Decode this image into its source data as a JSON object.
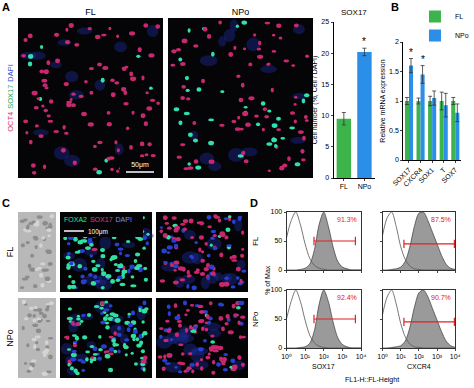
{
  "panel_labels": [
    "A",
    "B",
    "C",
    "D"
  ],
  "panel_a_images": {
    "columns": [
      "FL",
      "NPo"
    ],
    "stain": [
      {
        "text": "OCT4",
        "color": "#e0306a"
      },
      {
        "text": "SOX17",
        "color": "#10a868"
      },
      {
        "text": "DAPI",
        "color": "#2f4fe0"
      }
    ],
    "scale_bar": "50μm"
  },
  "panel_c_images": {
    "rows": [
      "FL",
      "NPo"
    ],
    "stain": [
      {
        "text": "FOXA2",
        "color": "#30e090"
      },
      {
        "text": "SOX17",
        "color": "#ff3070"
      },
      {
        "text": "DAPI",
        "color": "#7090ff"
      }
    ],
    "scale_bar": "100μm"
  },
  "panel_d": {
    "rows": [
      "FL",
      "NPo"
    ],
    "ylabel": "% of Max",
    "xlabel": "FL1-H::FL-Height"
  },
  "chart_data": [
    {
      "type": "bar",
      "title": "SOX17",
      "ylabel": "Cell number (%, Cell / DAPI)",
      "categories": [
        "FL",
        "NPo"
      ],
      "values": [
        9.5,
        20.2
      ],
      "errors": [
        1.0,
        0.6
      ],
      "colors": [
        "#3cb44b",
        "#2b8fe8"
      ],
      "ylim": [
        0,
        25
      ],
      "yticks": [
        0,
        5,
        10,
        15,
        20,
        25
      ],
      "annotations": [
        {
          "category": "NPo",
          "text": "*"
        }
      ]
    },
    {
      "type": "bar",
      "ylabel": "Relative mRNA expression",
      "categories": [
        "SOX17",
        "CXCR4",
        "SOX1",
        "T",
        "SOX7"
      ],
      "series": [
        {
          "name": "FL",
          "color": "#3cb44b",
          "values": [
            1,
            1,
            1,
            1,
            1
          ],
          "errors": [
            0.06,
            0.05,
            0.08,
            0.15,
            0.06
          ]
        },
        {
          "name": "NPo",
          "color": "#2b8fe8",
          "values": [
            1.6,
            1.45,
            1.05,
            0.93,
            0.8
          ],
          "errors": [
            0.12,
            0.15,
            0.12,
            0.2,
            0.15
          ]
        }
      ],
      "ylim": [
        0,
        2
      ],
      "yticks": [
        0,
        0.5,
        1,
        1.5,
        2
      ],
      "legend": "top",
      "annotations": [
        {
          "category": "SOX17",
          "series": "NPo",
          "text": "*"
        },
        {
          "category": "CXCR4",
          "series": "NPo",
          "text": "*"
        }
      ]
    },
    {
      "type": "line",
      "x": [
        1,
        1.78,
        3.16,
        5.62,
        10,
        17.8,
        31.6,
        56.2,
        100,
        178,
        316,
        562,
        1000,
        1778,
        3162,
        5623,
        10000
      ],
      "series": [
        {
          "type": "area",
          "color": "#9a9a9a",
          "values": [
            0,
            0,
            0,
            1,
            3,
            10,
            35,
            78,
            100,
            75,
            40,
            15,
            5,
            2,
            0,
            0,
            0
          ]
        },
        {
          "type": "line",
          "color": "#555555",
          "values": [
            55,
            85,
            100,
            78,
            45,
            20,
            8,
            3,
            1,
            0,
            0,
            0,
            0,
            0,
            0,
            0,
            0
          ]
        }
      ],
      "xlim": [
        1,
        10000
      ],
      "xticks": [
        {
          "value": 1,
          "label": "10⁰"
        },
        {
          "value": 10,
          "label": "10¹"
        },
        {
          "value": 100,
          "label": "10²"
        },
        {
          "value": 1000,
          "label": "10³"
        },
        {
          "value": 10000,
          "label": "10⁴"
        }
      ],
      "ylim": [
        0,
        100
      ],
      "yticks": [
        0,
        50,
        100
      ],
      "log": "x",
      "gate": {
        "range": [
          30,
          5000
        ],
        "y": 50,
        "label": "91.3%",
        "color": "#e02020"
      },
      "tick_labels": "y"
    },
    {
      "type": "line",
      "x": [
        1,
        1.78,
        3.16,
        5.62,
        10,
        17.8,
        31.6,
        56.2,
        100,
        178,
        316,
        562,
        1000,
        1778,
        3162,
        5623,
        10000
      ],
      "series": [
        {
          "type": "area",
          "color": "#9a9a9a",
          "values": [
            0,
            0,
            1,
            2,
            5,
            15,
            40,
            75,
            98,
            100,
            85,
            65,
            45,
            25,
            10,
            3,
            1
          ]
        },
        {
          "type": "line",
          "color": "#555555",
          "values": [
            60,
            90,
            100,
            75,
            40,
            18,
            7,
            2,
            1,
            0,
            0,
            0,
            0,
            0,
            0,
            0,
            0
          ]
        }
      ],
      "xlim": [
        1,
        10000
      ],
      "xticks": [
        {
          "value": 1,
          "label": "10⁰"
        },
        {
          "value": 10,
          "label": "10¹"
        },
        {
          "value": 100,
          "label": "10²"
        },
        {
          "value": 1000,
          "label": "10³"
        },
        {
          "value": 10000,
          "label": "10⁴"
        }
      ],
      "ylim": [
        0,
        100
      ],
      "yticks": [
        0,
        50,
        100
      ],
      "log": "x",
      "gate": {
        "range": [
          15,
          9000
        ],
        "y": 45,
        "label": "87.5%",
        "color": "#e02020"
      },
      "tick_labels": false
    },
    {
      "type": "line",
      "xlabel": "SOX17",
      "x": [
        1,
        1.78,
        3.16,
        5.62,
        10,
        17.8,
        31.6,
        56.2,
        100,
        178,
        316,
        562,
        1000,
        1778,
        3162,
        5623,
        10000
      ],
      "series": [
        {
          "type": "area",
          "color": "#9a9a9a",
          "values": [
            0,
            0,
            0,
            1,
            2,
            8,
            30,
            75,
            100,
            80,
            45,
            18,
            6,
            2,
            0,
            0,
            0
          ]
        },
        {
          "type": "line",
          "color": "#555555",
          "values": [
            50,
            80,
            100,
            80,
            48,
            22,
            9,
            3,
            1,
            0,
            0,
            0,
            0,
            0,
            0,
            0,
            0
          ]
        }
      ],
      "xlim": [
        1,
        10000
      ],
      "xticks": [
        {
          "value": 1,
          "label": "10⁰"
        },
        {
          "value": 10,
          "label": "10¹"
        },
        {
          "value": 100,
          "label": "10²"
        },
        {
          "value": 1000,
          "label": "10³"
        },
        {
          "value": 10000,
          "label": "10⁴"
        }
      ],
      "ylim": [
        0,
        100
      ],
      "yticks": [
        0,
        50,
        100
      ],
      "log": "x",
      "gate": {
        "range": [
          30,
          5000
        ],
        "y": 50,
        "label": "92.4%",
        "color": "#e02020"
      }
    },
    {
      "type": "line",
      "xlabel": "CXCR4",
      "x": [
        1,
        1.78,
        3.16,
        5.62,
        10,
        17.8,
        31.6,
        56.2,
        100,
        178,
        316,
        562,
        1000,
        1778,
        3162,
        5623,
        10000
      ],
      "series": [
        {
          "type": "area",
          "color": "#9a9a9a",
          "values": [
            0,
            0,
            1,
            2,
            4,
            12,
            35,
            70,
            95,
            100,
            88,
            68,
            48,
            28,
            12,
            4,
            1
          ]
        },
        {
          "type": "line",
          "color": "#555555",
          "values": [
            58,
            88,
            100,
            76,
            42,
            19,
            7,
            2,
            1,
            0,
            0,
            0,
            0,
            0,
            0,
            0,
            0
          ]
        }
      ],
      "xlim": [
        1,
        10000
      ],
      "xticks": [
        {
          "value": 1,
          "label": "10⁰"
        },
        {
          "value": 10,
          "label": "10¹"
        },
        {
          "value": 100,
          "label": "10²"
        },
        {
          "value": 1000,
          "label": "10³"
        },
        {
          "value": 10000,
          "label": "10⁴"
        }
      ],
      "ylim": [
        0,
        100
      ],
      "yticks": [
        0,
        50,
        100
      ],
      "log": "x",
      "gate": {
        "range": [
          15,
          9000
        ],
        "y": 45,
        "label": "90.7%",
        "color": "#e02020"
      },
      "tick_labels": "x"
    }
  ]
}
